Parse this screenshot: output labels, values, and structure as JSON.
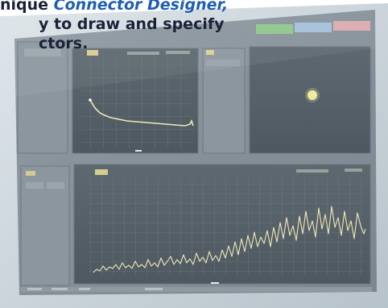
{
  "promo": {
    "line1_pre": "nique ",
    "line1_accent": "Connector Designer,",
    "line2": "y to draw and specify",
    "line3": "ctors."
  },
  "colors": {
    "accent": "#1e5fb3",
    "bezel": "#cfd9e0",
    "panel_bg": "#7a8690",
    "plot_bg": "#59636b",
    "trace": "#efe8b6",
    "label_chip": "#e2d891",
    "button_green": "#8fd08a",
    "button_blue": "#a8c8e4",
    "button_pink": "#e9b0b2"
  },
  "screen": {
    "top_buttons": [
      "",
      "",
      ""
    ],
    "plot1": {
      "label_chip": "",
      "freq_readout": "",
      "power_readout": ""
    },
    "plot2": {
      "label_chip": ""
    },
    "plot3": {
      "label_chip": "",
      "freq_readout": "",
      "power_readout": ""
    },
    "status_bar": [
      "",
      "",
      "",
      ""
    ]
  }
}
